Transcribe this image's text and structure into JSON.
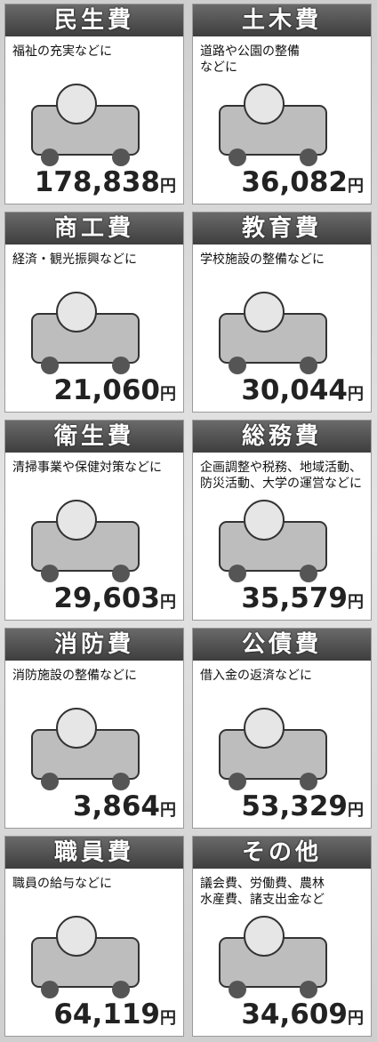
{
  "cards": [
    {
      "title": "民生費",
      "description": "福祉の充実などに",
      "amount": "178,838",
      "unit": "円"
    },
    {
      "title": "土木費",
      "description": "道路や公園の整備\nなどに",
      "amount": "36,082",
      "unit": "円"
    },
    {
      "title": "商工費",
      "description": "経済・観光振興などに",
      "amount": "21,060",
      "unit": "円"
    },
    {
      "title": "教育費",
      "description": "学校施設の整備などに",
      "amount": "30,044",
      "unit": "円"
    },
    {
      "title": "衛生費",
      "description": "清掃事業や保健対策などに",
      "amount": "29,603",
      "unit": "円"
    },
    {
      "title": "総務費",
      "description": "企画調整や税務、地域活動、\n防災活動、大学の運営などに",
      "amount": "35,579",
      "unit": "円"
    },
    {
      "title": "消防費",
      "description": "消防施設の整備などに",
      "amount": "3,864",
      "unit": "円"
    },
    {
      "title": "公債費",
      "description": "借入金の返済などに",
      "amount": "53,329",
      "unit": "円"
    },
    {
      "title": "職員費",
      "description": "職員の給与などに",
      "amount": "64,119",
      "unit": "円"
    },
    {
      "title": "その他",
      "description": "議会費、労働費、農林\n水産費、諸支出金など",
      "amount": "34,609",
      "unit": "円"
    }
  ]
}
